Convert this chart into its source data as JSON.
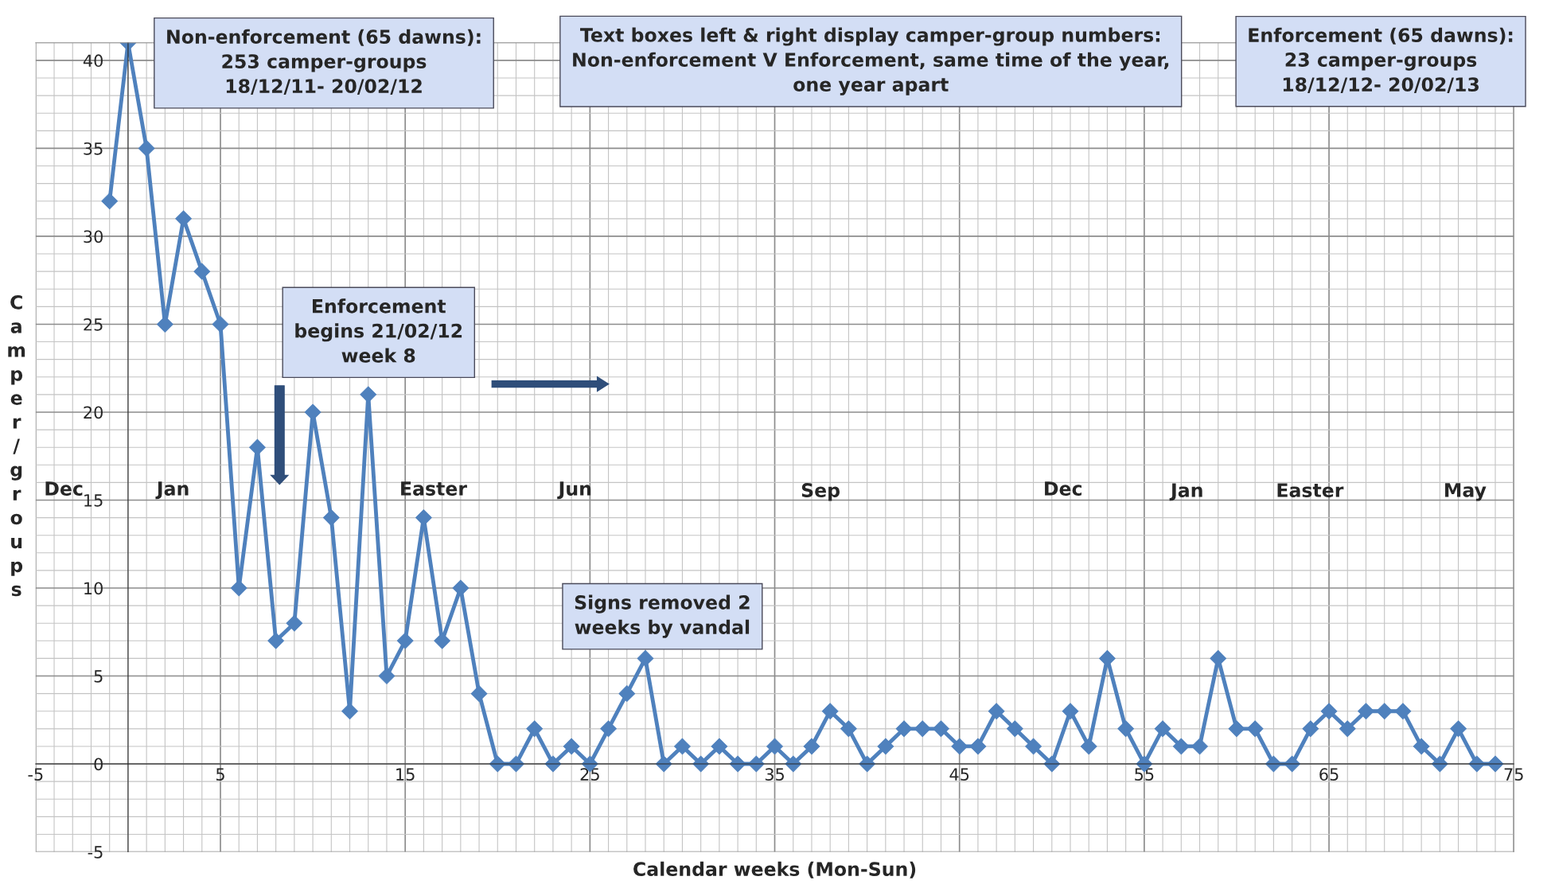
{
  "chart_data": {
    "type": "line",
    "xlabel": "Calendar weeks (Mon-Sun)",
    "ylabel": "Camper/groups",
    "x": [
      -1,
      0,
      1,
      2,
      3,
      4,
      5,
      6,
      7,
      8,
      9,
      10,
      11,
      12,
      13,
      14,
      15,
      16,
      17,
      18,
      19,
      20,
      21,
      22,
      23,
      24,
      25,
      26,
      27,
      28,
      29,
      30,
      31,
      32,
      33,
      34,
      35,
      36,
      37,
      38,
      39,
      40,
      41,
      42,
      43,
      44,
      45,
      46,
      47,
      48,
      49,
      50,
      51,
      52,
      53,
      54,
      55,
      56,
      57,
      58,
      59,
      60,
      61,
      62,
      63,
      64,
      65,
      66,
      67,
      68,
      69,
      70,
      71,
      72,
      73,
      74
    ],
    "series": [
      {
        "color": "#4f81bd",
        "values": [
          32,
          41,
          35,
          25,
          31,
          28,
          25,
          10,
          18,
          7,
          8,
          20,
          14,
          3,
          21,
          5,
          7,
          14,
          7,
          10,
          4,
          0,
          0,
          2,
          0,
          1,
          0,
          2,
          4,
          6,
          0,
          1,
          0,
          1,
          0,
          0,
          1,
          0,
          1,
          3,
          2,
          0,
          1,
          2,
          2,
          2,
          1,
          1,
          3,
          2,
          1,
          0,
          3,
          1,
          6,
          2,
          0,
          2,
          1,
          1,
          6,
          2,
          2,
          0,
          0,
          2,
          3,
          2,
          3,
          3,
          3,
          1,
          0,
          2,
          0,
          0
        ]
      }
    ],
    "xlim": [
      -5,
      75
    ],
    "xticks": [
      -5,
      5,
      15,
      25,
      35,
      45,
      55,
      65,
      75
    ],
    "ylim": [
      -5,
      41
    ],
    "yticks": [
      -5,
      0,
      5,
      10,
      15,
      20,
      25,
      30,
      35,
      40
    ],
    "grid": true,
    "marker": "diamond",
    "line_style": "solid",
    "legend": false,
    "annotations": [
      "Dec",
      "Jan",
      "Easter",
      "Jun",
      "Sep",
      "Dec",
      "Jan",
      "Easter",
      "May",
      "Non-enforcement (65 dawns):\n253 camper-groups\n18/12/11- 20/02/12",
      "Enforcement\nbegins 21/02/12\nweek 8",
      "Text boxes left & right display camper-group numbers:\nNon-enforcement V Enforcement, same time of the year,\none year apart",
      "Enforcement (65 dawns):\n23 camper-groups\n18/12/12- 20/02/13",
      "Signs removed 2\nweeks by vandal"
    ]
  }
}
